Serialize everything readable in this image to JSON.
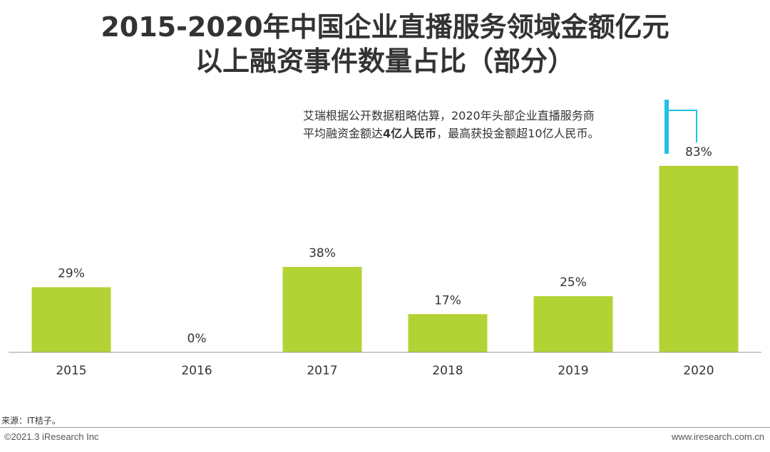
{
  "title_line1": "2015-2020年中国企业直播服务领域金额亿元",
  "title_line2": "以上融资事件数量占比（部分）",
  "annotation": {
    "line1": "艾瑞根据公开数据粗略估算，2020年头部企业直播服务商",
    "line2_pre": "平均融资金额达",
    "line2_bold": "4亿人民币",
    "line2_post": "，最高获投金额超10亿人民币。"
  },
  "footer": {
    "source": "来源：IT桔子。",
    "copyright": "©2021.3 iResearch Inc",
    "website": "www.iresearch.com.cn"
  },
  "colors": {
    "bar": "#b3d334",
    "accent": "#1fc0e8",
    "text": "#333333",
    "axis": "#999999"
  },
  "chart_data": {
    "type": "bar",
    "title": "2015-2020年中国企业直播服务领域金额亿元以上融资事件数量占比（部分）",
    "categories": [
      "2015",
      "2016",
      "2017",
      "2018",
      "2019",
      "2020"
    ],
    "values": [
      29,
      0,
      38,
      17,
      25,
      83
    ],
    "data_labels": [
      "29%",
      "0%",
      "38%",
      "17%",
      "25%",
      "83%"
    ],
    "unit": "%",
    "xlabel": "",
    "ylabel": "",
    "ylim": [
      0,
      83
    ],
    "grid": false,
    "legend": "none"
  }
}
